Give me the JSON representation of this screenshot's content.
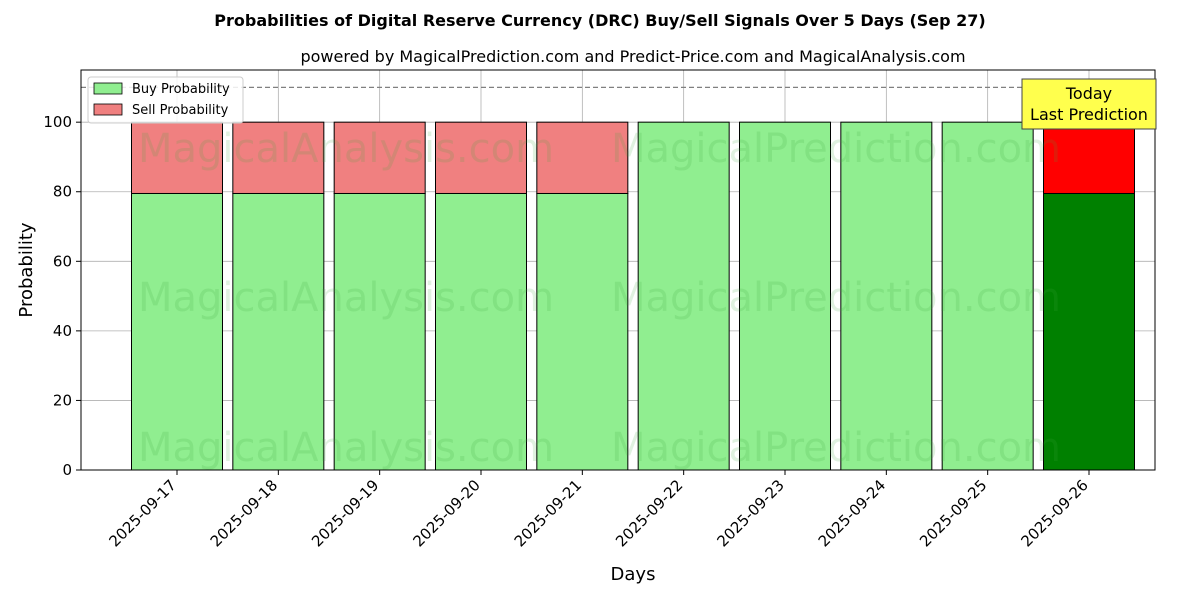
{
  "chart_data": {
    "type": "bar",
    "stacked": true,
    "title": "Probabilities of Digital Reserve Currency (DRC) Buy/Sell Signals Over 5 Days (Sep 27)",
    "subtitle": "powered by MagicalPrediction.com and Predict-Price.com and MagicalAnalysis.com",
    "xlabel": "Days",
    "ylabel": "Probability",
    "ylim": [
      0,
      115
    ],
    "yticks": [
      "0",
      "20",
      "40",
      "60",
      "80",
      "100"
    ],
    "categories": [
      "2025-09-17",
      "2025-09-18",
      "2025-09-19",
      "2025-09-20",
      "2025-09-21",
      "2025-09-22",
      "2025-09-23",
      "2025-09-24",
      "2025-09-25",
      "2025-09-26"
    ],
    "series": [
      {
        "name": "Buy Probability",
        "values": [
          79.5,
          79.5,
          79.5,
          79.5,
          79.5,
          100,
          100,
          100,
          100,
          79.5
        ],
        "color": "#90ee90",
        "highlight_color": "#008000"
      },
      {
        "name": "Sell Probability",
        "values": [
          20.5,
          20.5,
          20.5,
          20.5,
          20.5,
          0,
          0,
          0,
          0,
          20.5
        ],
        "color": "#f08080",
        "highlight_color": "#ff0000"
      }
    ],
    "highlight_index": 9,
    "reference_line": {
      "y": 110,
      "style": "dashed",
      "color": "#808080"
    },
    "annotation": {
      "lines": [
        "Today",
        "Last Prediction"
      ],
      "background": "#ffff4d"
    },
    "legend": {
      "position": "top-left"
    },
    "grid": true,
    "watermarks": [
      "MagicalAnalysis.com",
      "MagicalPrediction.com"
    ]
  }
}
